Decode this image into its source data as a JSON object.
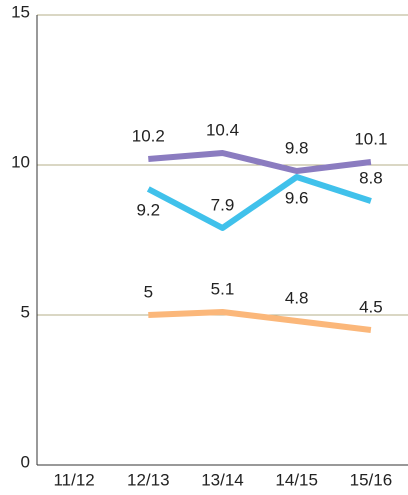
{
  "chart_data": {
    "type": "line",
    "categories": [
      "11/12",
      "12/13",
      "13/14",
      "14/15",
      "15/16"
    ],
    "series": [
      {
        "color": "#8b7cc0",
        "values": [
          null,
          10.2,
          10.4,
          9.8,
          10.1
        ]
      },
      {
        "color": "#40c1eb",
        "values": [
          null,
          9.2,
          7.9,
          9.6,
          8.8
        ]
      },
      {
        "color": "#fbb77a",
        "values": [
          null,
          5,
          5.1,
          4.8,
          4.5
        ]
      }
    ],
    "ylim": [
      0,
      15
    ],
    "yticks": [
      0,
      5,
      10,
      15
    ],
    "grid": true,
    "grid_color": "#b5af88"
  }
}
